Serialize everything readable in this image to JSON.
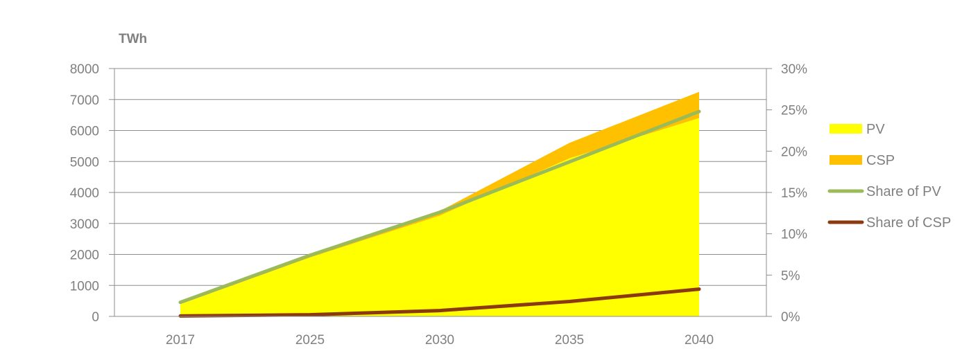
{
  "chart_data": {
    "type": "area",
    "unit_label": "TWh",
    "categories": [
      "2017",
      "2025",
      "2030",
      "2035",
      "2040"
    ],
    "y_left": {
      "min": 0,
      "max": 8000,
      "ticks": [
        "0",
        "1000",
        "2000",
        "3000",
        "4000",
        "5000",
        "6000",
        "7000",
        "8000"
      ]
    },
    "y_right": {
      "min": 0,
      "max": 30,
      "ticks": [
        "0%",
        "5%",
        "10%",
        "15%",
        "20%",
        "25%",
        "30%"
      ]
    },
    "grid": true,
    "legend_position": "right",
    "series": [
      {
        "name": "PV",
        "kind": "area",
        "axis": "left",
        "stacked": true,
        "color": "#ffff00",
        "values": [
          390,
          1900,
          3250,
          5100,
          6400
        ]
      },
      {
        "name": "CSP",
        "kind": "area",
        "axis": "left",
        "stacked": true,
        "color": "#ffc000",
        "values": [
          10,
          50,
          150,
          500,
          850
        ]
      },
      {
        "name": "Share of PV",
        "kind": "line",
        "axis": "right",
        "color": "#9bbb59",
        "values": [
          1.7,
          7.4,
          12.6,
          18.7,
          24.8
        ]
      },
      {
        "name": "Share of CSP",
        "kind": "line",
        "axis": "right",
        "color": "#8b3a0f",
        "values": [
          0.05,
          0.2,
          0.7,
          1.8,
          3.3
        ]
      }
    ]
  }
}
